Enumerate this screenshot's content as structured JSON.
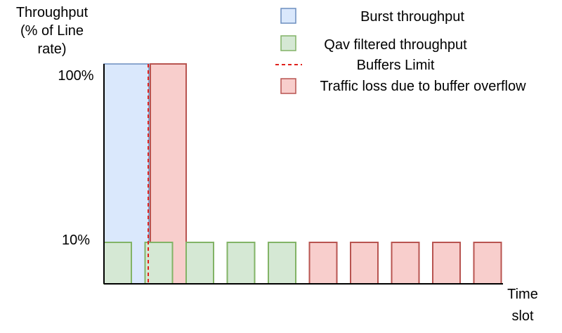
{
  "y_axis": {
    "label_lines": [
      "Throughput",
      "(% of Line",
      "rate)"
    ],
    "tick_labels": [
      "100%",
      "10%"
    ]
  },
  "x_axis": {
    "label_lines": [
      "Time",
      "slot"
    ]
  },
  "legend": {
    "items": [
      {
        "label": "Burst throughput",
        "swatch": "box",
        "fill": "#dae8fc",
        "stroke": "#6c8ebf"
      },
      {
        "label": "Qav filtered throughput",
        "swatch": "box",
        "fill": "#d5e8d4",
        "stroke": "#82b366"
      },
      {
        "label": "Buffers Limit",
        "swatch": "dashed-line",
        "stroke": "#e0211d"
      },
      {
        "label": "Traffic loss due to buffer overflow",
        "swatch": "box",
        "fill": "#f8cecc",
        "stroke": "#b85450"
      }
    ]
  },
  "colors": {
    "burst_fill": "#dae8fc",
    "burst_stroke": "#6c8ebf",
    "filtered_fill": "#d5e8d4",
    "filtered_stroke": "#82b366",
    "loss_fill": "#f8cecc",
    "loss_stroke": "#b85450",
    "buffer_limit": "#e0211d",
    "axis": "#000000"
  },
  "burst": {
    "slots": 1,
    "level_percent": 100
  },
  "overflow_burst": {
    "slots": 1,
    "level_percent": 100
  },
  "buffer_limit_after_slots": 1,
  "time_slots": [
    "filtered",
    "filtered",
    "filtered",
    "filtered",
    "filtered",
    "loss",
    "loss",
    "loss",
    "loss",
    "loss"
  ],
  "slot_level_percent": 10
}
